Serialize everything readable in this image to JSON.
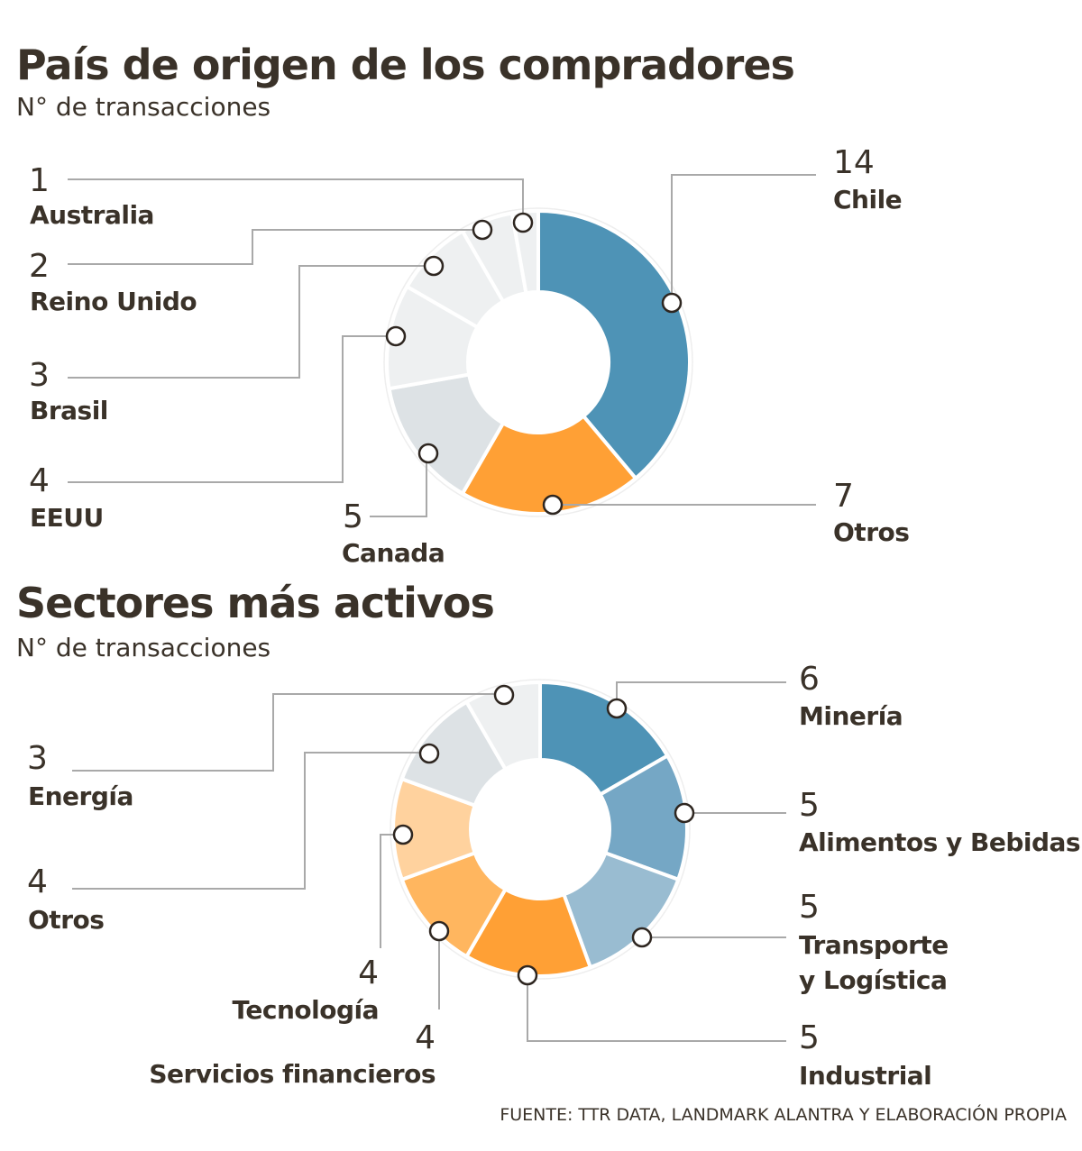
{
  "chart_data": [
    {
      "type": "pie",
      "title": "País de origen de los compradores",
      "subtitle": "N° de transacciones",
      "categories": [
        "Chile",
        "Otros",
        "Canada",
        "EEUU",
        "Brasil",
        "Reino Unido",
        "Australia"
      ],
      "values": [
        14,
        7,
        5,
        4,
        3,
        2,
        1
      ],
      "colors": [
        "#4e93b6",
        "#ffa035",
        "#dde2e5",
        "#eef0f1",
        "#eef0f1",
        "#eef0f1",
        "#eef0f1"
      ]
    },
    {
      "type": "pie",
      "title": "Sectores más activos",
      "subtitle": "N° de transacciones",
      "categories": [
        "Minería",
        "Alimentos y Bebidas",
        "Transporte y Logística",
        "Industrial",
        "Servicios financieros",
        "Tecnología",
        "Otros",
        "Energía"
      ],
      "label_lines": [
        [
          "Minería"
        ],
        [
          "Alimentos y Bebidas"
        ],
        [
          "Transporte",
          "y Logística"
        ],
        [
          "Industrial"
        ],
        [
          "Servicios financieros"
        ],
        [
          "Tecnología"
        ],
        [
          "Otros"
        ],
        [
          "Energía"
        ]
      ],
      "values": [
        6,
        5,
        5,
        5,
        4,
        4,
        4,
        3
      ],
      "colors": [
        "#4e93b6",
        "#75a7c5",
        "#99bcd1",
        "#ffa035",
        "#ffb65f",
        "#ffd29e",
        "#dde2e5",
        "#eef0f1"
      ]
    }
  ],
  "source": "FUENTE: TTR DATA, LANDMARK ALANTRA Y ELABORACIÓN PROPIA"
}
